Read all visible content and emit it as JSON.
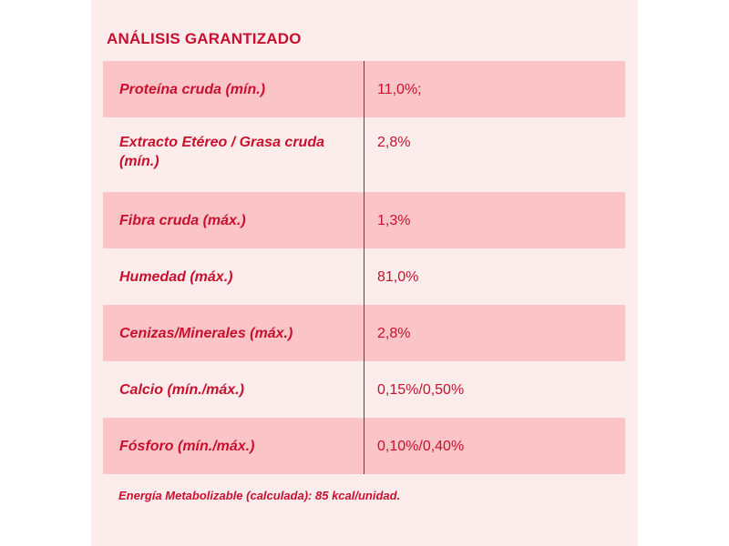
{
  "title": "ANÁLISIS GARANTIZADO",
  "rows": [
    {
      "label": "Proteína cruda (mín.)",
      "value": "11,0%;"
    },
    {
      "label": "Extracto Etéreo / Grasa cruda (mín.)",
      "value": "2,8%"
    },
    {
      "label": "Fibra cruda (máx.)",
      "value": "1,3%"
    },
    {
      "label": "Humedad (máx.)",
      "value": "81,0%"
    },
    {
      "label": "Cenizas/Minerales (máx.)",
      "value": "2,8%"
    },
    {
      "label": "Calcio (mín./máx.)",
      "value": "0,15%/0,50%"
    },
    {
      "label": "Fósforo (mín./máx.)",
      "value": "0,10%/0,40%"
    }
  ],
  "footer": "Energía Metabolizable (calculada): 85 kcal/unidad.",
  "colors": {
    "accent": "#c8102e",
    "shaded_row": "#fbc5c8",
    "panel": "#fdecec"
  }
}
